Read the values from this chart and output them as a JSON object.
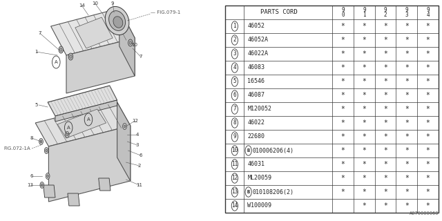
{
  "parts": [
    {
      "num": "1",
      "code": "46052",
      "cols": [
        "*",
        "*",
        "*",
        "*",
        "*"
      ]
    },
    {
      "num": "2",
      "code": "46052A",
      "cols": [
        "*",
        "*",
        "*",
        "*",
        "*"
      ]
    },
    {
      "num": "3",
      "code": "46022A",
      "cols": [
        "*",
        "*",
        "*",
        "*",
        "*"
      ]
    },
    {
      "num": "4",
      "code": "46083",
      "cols": [
        "*",
        "*",
        "*",
        "*",
        "*"
      ]
    },
    {
      "num": "5",
      "code": "16546",
      "cols": [
        "*",
        "*",
        "*",
        "*",
        "*"
      ]
    },
    {
      "num": "6",
      "code": "46087",
      "cols": [
        "*",
        "*",
        "*",
        "*",
        "*"
      ]
    },
    {
      "num": "7",
      "code": "M120052",
      "cols": [
        "*",
        "*",
        "*",
        "*",
        "*"
      ]
    },
    {
      "num": "8",
      "code": "46022",
      "cols": [
        "*",
        "*",
        "*",
        "*",
        "*"
      ]
    },
    {
      "num": "9",
      "code": "22680",
      "cols": [
        "*",
        "*",
        "*",
        "*",
        "*"
      ]
    },
    {
      "num": "10",
      "code": "B010006206(4)",
      "cols": [
        "*",
        "*",
        "*",
        "*",
        "*"
      ],
      "bolt": true
    },
    {
      "num": "11",
      "code": "46031",
      "cols": [
        "*",
        "*",
        "*",
        "*",
        "*"
      ]
    },
    {
      "num": "12",
      "code": "ML20059",
      "cols": [
        "*",
        "*",
        "*",
        "*",
        "*"
      ]
    },
    {
      "num": "13",
      "code": "B010108206(2)",
      "cols": [
        "*",
        "*",
        "*",
        "*",
        "*"
      ],
      "bolt": true
    },
    {
      "num": "14",
      "code": "W100009",
      "cols": [
        " ",
        "*",
        "*",
        "*",
        "*"
      ]
    }
  ],
  "col_years": [
    "9\n0",
    "9\n1",
    "9\n2",
    "9\n3",
    "9\n4"
  ],
  "fig_label": "A070000060",
  "bg_color": "#ffffff"
}
